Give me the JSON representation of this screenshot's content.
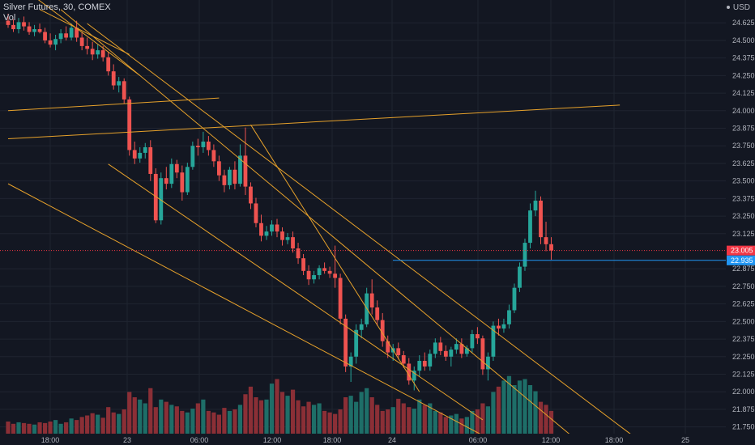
{
  "legend": {
    "title": "Silver Futures, 30, COMEX",
    "study": "Vol"
  },
  "currency": "USD",
  "colors": {
    "background": "#131722",
    "grid": "#1f2430",
    "up": "#26a69a",
    "down": "#ef5350",
    "vol_up": "#1e6e68",
    "vol_down": "#8b2f36",
    "trendline": "#e6a12b",
    "last_price": "#f23645",
    "level": "#2196f3",
    "axis_text": "#b2b5be"
  },
  "chart_data": {
    "type": "candlestick",
    "symbol": "Silver Futures",
    "interval": "30",
    "exchange": "COMEX",
    "y_ticks": [
      "24.625",
      "24.500",
      "24.375",
      "24.250",
      "24.125",
      "24.000",
      "23.875",
      "23.750",
      "23.625",
      "23.500",
      "23.375",
      "23.250",
      "23.125",
      "22.875",
      "22.750",
      "22.625",
      "22.500",
      "22.375",
      "22.250",
      "22.125",
      "22.000",
      "21.875",
      "21.750"
    ],
    "ylim": [
      21.65,
      24.73
    ],
    "x_ticks": [
      "18:00",
      "23",
      "06:00",
      "12:00",
      "18:00",
      "24",
      "06:00",
      "12:00",
      "18:00",
      "25"
    ],
    "last_price": {
      "label": "23.005",
      "value": 23.005
    },
    "level_line": {
      "label": "22.935",
      "value": 22.935
    },
    "candles": [
      [
        24.64,
        24.69,
        24.59,
        24.61
      ],
      [
        24.61,
        24.65,
        24.56,
        24.58
      ],
      [
        24.58,
        24.66,
        24.55,
        24.63
      ],
      [
        24.63,
        24.67,
        24.57,
        24.6
      ],
      [
        24.6,
        24.63,
        24.54,
        24.56
      ],
      [
        24.56,
        24.61,
        24.53,
        24.58
      ],
      [
        24.58,
        24.62,
        24.55,
        24.56
      ],
      [
        24.56,
        24.59,
        24.48,
        24.5
      ],
      [
        24.5,
        24.55,
        24.45,
        24.47
      ],
      [
        24.47,
        24.54,
        24.43,
        24.51
      ],
      [
        24.51,
        24.58,
        24.48,
        24.55
      ],
      [
        24.55,
        24.6,
        24.5,
        24.52
      ],
      [
        24.52,
        24.62,
        24.5,
        24.59
      ],
      [
        24.59,
        24.64,
        24.49,
        24.52
      ],
      [
        24.52,
        24.56,
        24.43,
        24.46
      ],
      [
        24.46,
        24.52,
        24.4,
        24.44
      ],
      [
        24.44,
        24.49,
        24.36,
        24.4
      ],
      [
        24.4,
        24.47,
        24.37,
        24.43
      ],
      [
        24.43,
        24.46,
        24.35,
        24.38
      ],
      [
        24.38,
        24.42,
        24.25,
        24.28
      ],
      [
        24.28,
        24.33,
        24.15,
        24.18
      ],
      [
        24.18,
        24.24,
        24.13,
        24.21
      ],
      [
        24.21,
        24.23,
        24.05,
        24.08
      ],
      [
        24.08,
        24.1,
        23.68,
        23.72
      ],
      [
        23.72,
        23.78,
        23.62,
        23.66
      ],
      [
        23.66,
        23.74,
        23.63,
        23.7
      ],
      [
        23.7,
        23.77,
        23.66,
        23.74
      ],
      [
        23.74,
        23.79,
        23.5,
        23.55
      ],
      [
        23.55,
        23.59,
        23.2,
        23.22
      ],
      [
        23.22,
        23.56,
        23.19,
        23.52
      ],
      [
        23.52,
        23.6,
        23.44,
        23.48
      ],
      [
        23.48,
        23.66,
        23.45,
        23.62
      ],
      [
        23.62,
        23.65,
        23.52,
        23.56
      ],
      [
        23.56,
        23.61,
        23.36,
        23.42
      ],
      [
        23.42,
        23.63,
        23.4,
        23.6
      ],
      [
        23.6,
        23.78,
        23.58,
        23.75
      ],
      [
        23.75,
        23.8,
        23.68,
        23.74
      ],
      [
        23.74,
        23.85,
        23.7,
        23.78
      ],
      [
        23.78,
        23.82,
        23.68,
        23.72
      ],
      [
        23.72,
        23.76,
        23.6,
        23.64
      ],
      [
        23.64,
        23.68,
        23.5,
        23.54
      ],
      [
        23.54,
        23.58,
        23.42,
        23.47
      ],
      [
        23.47,
        23.6,
        23.44,
        23.58
      ],
      [
        23.58,
        23.64,
        23.44,
        23.48
      ],
      [
        23.48,
        23.76,
        23.46,
        23.68
      ],
      [
        23.68,
        23.88,
        23.4,
        23.46
      ],
      [
        23.46,
        23.49,
        23.3,
        23.34
      ],
      [
        23.34,
        23.38,
        23.17,
        23.2
      ],
      [
        23.2,
        23.26,
        23.07,
        23.11
      ],
      [
        23.11,
        23.18,
        23.08,
        23.14
      ],
      [
        23.14,
        23.22,
        23.11,
        23.19
      ],
      [
        23.19,
        23.23,
        23.1,
        23.14
      ],
      [
        23.14,
        23.17,
        23.04,
        23.08
      ],
      [
        23.08,
        23.13,
        23.05,
        23.1
      ],
      [
        23.1,
        23.14,
        22.99,
        23.02
      ],
      [
        23.02,
        23.06,
        22.91,
        22.95
      ],
      [
        22.95,
        22.98,
        22.83,
        22.86
      ],
      [
        22.86,
        22.9,
        22.76,
        22.8
      ],
      [
        22.8,
        22.86,
        22.77,
        22.83
      ],
      [
        22.83,
        22.9,
        22.8,
        22.88
      ],
      [
        22.88,
        22.92,
        22.84,
        22.86
      ],
      [
        22.86,
        22.89,
        22.81,
        22.84
      ],
      [
        22.84,
        23.04,
        22.74,
        22.81
      ],
      [
        22.81,
        22.84,
        22.48,
        22.52
      ],
      [
        22.52,
        22.55,
        22.14,
        22.18
      ],
      [
        22.18,
        22.28,
        22.07,
        22.25
      ],
      [
        22.25,
        22.48,
        22.2,
        22.44
      ],
      [
        22.44,
        22.52,
        22.38,
        22.48
      ],
      [
        22.48,
        22.74,
        22.46,
        22.7
      ],
      [
        22.7,
        22.8,
        22.55,
        22.6
      ],
      [
        22.6,
        22.65,
        22.47,
        22.51
      ],
      [
        22.51,
        22.56,
        22.32,
        22.36
      ],
      [
        22.36,
        22.4,
        22.24,
        22.28
      ],
      [
        22.28,
        22.34,
        22.22,
        22.31
      ],
      [
        22.31,
        22.35,
        22.23,
        22.26
      ],
      [
        22.26,
        22.29,
        22.17,
        22.2
      ],
      [
        22.2,
        22.24,
        22.05,
        22.08
      ],
      [
        22.08,
        22.18,
        22.01,
        22.15
      ],
      [
        22.15,
        22.26,
        22.11,
        22.22
      ],
      [
        22.22,
        22.28,
        22.15,
        22.18
      ],
      [
        22.18,
        22.3,
        22.15,
        22.27
      ],
      [
        22.27,
        22.38,
        22.24,
        22.35
      ],
      [
        22.35,
        22.39,
        22.26,
        22.29
      ],
      [
        22.29,
        22.33,
        22.22,
        22.25
      ],
      [
        22.25,
        22.32,
        22.18,
        22.3
      ],
      [
        22.3,
        22.38,
        22.27,
        22.34
      ],
      [
        22.34,
        22.38,
        22.24,
        22.27
      ],
      [
        22.27,
        22.33,
        22.25,
        22.31
      ],
      [
        22.31,
        22.44,
        22.28,
        22.41
      ],
      [
        22.41,
        22.46,
        22.34,
        22.38
      ],
      [
        22.38,
        22.4,
        22.12,
        22.16
      ],
      [
        22.16,
        22.28,
        22.08,
        22.25
      ],
      [
        22.25,
        22.5,
        22.22,
        22.47
      ],
      [
        22.47,
        22.52,
        22.4,
        22.45
      ],
      [
        22.45,
        22.52,
        22.42,
        22.48
      ],
      [
        22.48,
        22.62,
        22.45,
        22.58
      ],
      [
        22.58,
        22.77,
        22.56,
        22.74
      ],
      [
        22.74,
        22.92,
        22.71,
        22.89
      ],
      [
        22.89,
        23.09,
        22.86,
        23.06
      ],
      [
        23.06,
        23.34,
        23.02,
        23.29
      ],
      [
        23.29,
        23.43,
        23.25,
        23.36
      ],
      [
        23.36,
        23.39,
        23.05,
        23.1
      ],
      [
        23.1,
        23.21,
        23.0,
        23.05
      ],
      [
        23.05,
        23.1,
        22.94,
        23.005
      ]
    ],
    "volumes": [
      16,
      13,
      15,
      14,
      13,
      12,
      15,
      14,
      16,
      18,
      13,
      15,
      20,
      18,
      22,
      24,
      27,
      25,
      21,
      35,
      28,
      26,
      32,
      55,
      48,
      45,
      40,
      60,
      35,
      45,
      42,
      38,
      36,
      30,
      28,
      33,
      40,
      45,
      30,
      28,
      25,
      34,
      30,
      32,
      38,
      52,
      62,
      48,
      44,
      45,
      66,
      72,
      55,
      50,
      58,
      44,
      36,
      42,
      38,
      40,
      30,
      28,
      26,
      32,
      48,
      50,
      42,
      55,
      60,
      48,
      38,
      30,
      32,
      35,
      46,
      40,
      35,
      33,
      45,
      38,
      40,
      30,
      28,
      22,
      24,
      26,
      20,
      22,
      30,
      32,
      40,
      36,
      55,
      62,
      70,
      76,
      64,
      70,
      72,
      64,
      56,
      42,
      38,
      30
    ],
    "trendlines": [
      {
        "from": [
          0,
          24.95
        ],
        "to": [
          25,
          24.25
        ]
      },
      {
        "from": [
          6,
          24.72
        ],
        "to": [
          23,
          24.4
        ]
      },
      {
        "from": [
          0,
          24.0
        ],
        "to": [
          40,
          24.09
        ]
      },
      {
        "from": [
          0,
          23.8
        ],
        "to": [
          116,
          24.04
        ]
      },
      {
        "from": [
          10,
          24.72
        ],
        "to": [
          108,
          21.65
        ]
      },
      {
        "from": [
          15,
          24.62
        ],
        "to": [
          118,
          21.7
        ]
      },
      {
        "from": [
          19,
          23.62
        ],
        "to": [
          90,
          21.8
        ]
      },
      {
        "from": [
          0,
          23.48
        ],
        "to": [
          92,
          21.65
        ]
      },
      {
        "from": [
          46,
          23.9
        ],
        "to": [
          78,
          22.0
        ]
      }
    ]
  }
}
